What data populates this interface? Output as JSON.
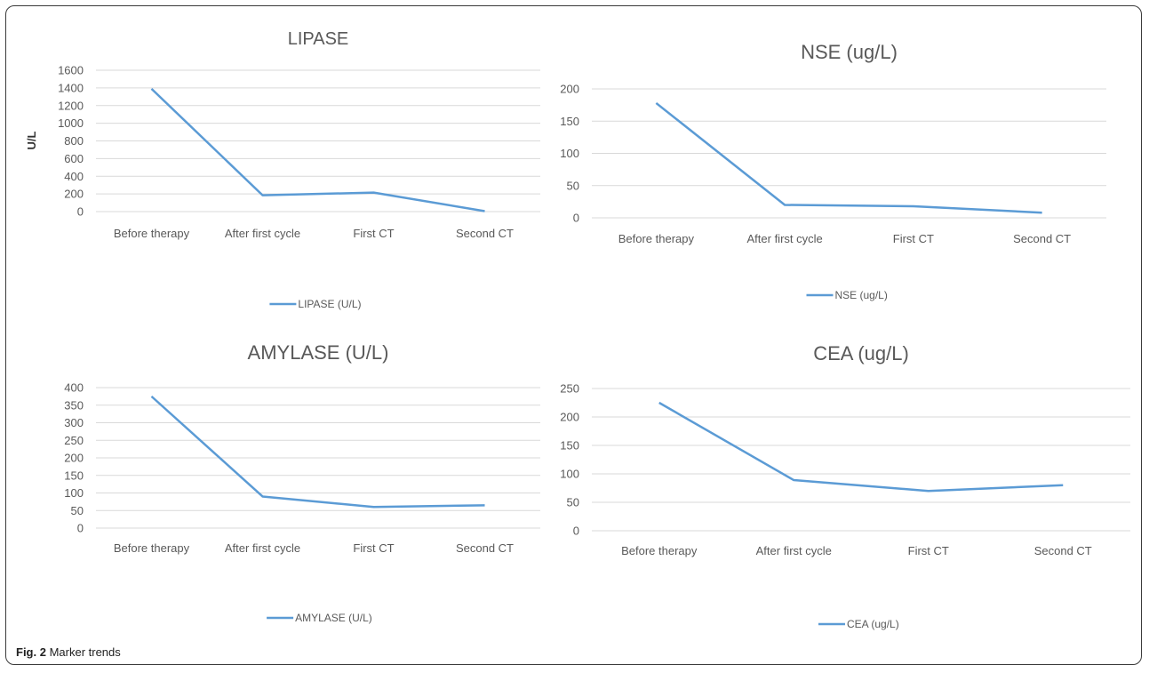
{
  "figure": {
    "label": "Fig. 2",
    "text": "Marker trends"
  },
  "colors": {
    "series": "#5b9bd5",
    "grid": "#d9d9d9",
    "text": "#595959"
  },
  "chart_data": [
    {
      "type": "line",
      "title": "LIPASE",
      "ylabel": "U/L",
      "xlabel": "",
      "categories": [
        "Before therapy",
        "After first  cycle",
        "First CT",
        "Second CT"
      ],
      "yticks": [
        0,
        200,
        400,
        600,
        800,
        1000,
        1200,
        1400,
        1600
      ],
      "ylim": [
        0,
        1600
      ],
      "grid": true,
      "legend_position": "bottom",
      "series": [
        {
          "name": "LIPASE (U/L)",
          "values": [
            1390,
            185,
            215,
            5
          ]
        }
      ]
    },
    {
      "type": "line",
      "title": "NSE (ug/L)",
      "ylabel": "",
      "xlabel": "",
      "categories": [
        "Before therapy",
        "After first  cycle",
        "First CT",
        "Second CT"
      ],
      "yticks": [
        0,
        50,
        100,
        150,
        200
      ],
      "ylim": [
        0,
        200
      ],
      "grid": true,
      "legend_position": "bottom",
      "series": [
        {
          "name": "NSE (ug/L)",
          "values": [
            178,
            20,
            18,
            8
          ]
        }
      ]
    },
    {
      "type": "line",
      "title": "AMYLASE (U/L)",
      "ylabel": "",
      "xlabel": "",
      "categories": [
        "Before therapy",
        "After first  cycle",
        "First CT",
        "Second CT"
      ],
      "yticks": [
        0,
        50,
        100,
        150,
        200,
        250,
        300,
        350,
        400
      ],
      "ylim": [
        0,
        400
      ],
      "grid": true,
      "legend_position": "bottom",
      "series": [
        {
          "name": "AMYLASE (U/L)",
          "values": [
            375,
            90,
            60,
            65
          ]
        }
      ]
    },
    {
      "type": "line",
      "title": "CEA (ug/L)",
      "ylabel": "",
      "xlabel": "",
      "categories": [
        "Before therapy",
        "After first  cycle",
        "First  CT",
        "Second CT"
      ],
      "yticks": [
        0,
        50,
        100,
        150,
        200,
        250
      ],
      "ylim": [
        0,
        250
      ],
      "grid": true,
      "legend_position": "bottom",
      "series": [
        {
          "name": "CEA (ug/L)",
          "values": [
            225,
            89,
            70,
            80
          ]
        }
      ]
    }
  ]
}
